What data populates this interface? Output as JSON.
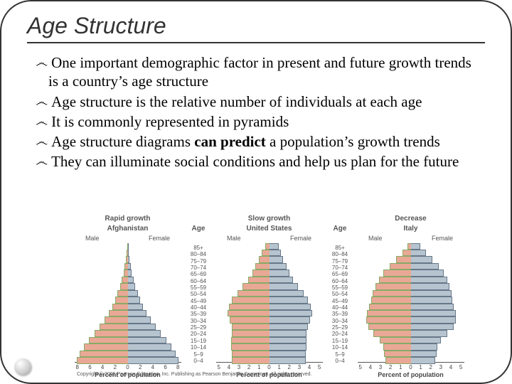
{
  "title": "Age Structure",
  "bullets": [
    {
      "pre": "One important demographic factor in present and future growth trends is a country’s age structure"
    },
    {
      "pre": "Age structure is the relative number of individuals at each age"
    },
    {
      "pre": "It is commonly represented in pyramids"
    },
    {
      "pre": "Age structure diagrams ",
      "bold": "can predict",
      "post": " a population’s growth trends"
    },
    {
      "pre": "They can illuminate social conditions and help us plan for the future"
    }
  ],
  "figure": {
    "male_fill": "#e9a896",
    "female_fill": "#b6c4cf",
    "age_header": "Age",
    "age_labels": [
      "85+",
      "80–84",
      "75–79",
      "70–74",
      "65–69",
      "60–64",
      "55–59",
      "50–54",
      "45–49",
      "40–44",
      "35–39",
      "30–34",
      "25–29",
      "20–24",
      "15–19",
      "10–14",
      "5–9",
      "0–4"
    ],
    "xlabel": "Percent of population",
    "xticks_wide": [
      "8",
      "6",
      "4",
      "2",
      "0",
      "2",
      "4",
      "6",
      "8"
    ],
    "xticks_narrow": [
      "5",
      "4",
      "3",
      "2",
      "1",
      "0",
      "1",
      "2",
      "3",
      "4",
      "5"
    ],
    "copyright": "Copyright © 2005 Pearson Education, Inc. Publishing as Pearson Benjamin Cummings. All rights reserved.",
    "pyramids": [
      {
        "title": "Rapid growth",
        "country": "Afghanistan",
        "ml": "Male",
        "fl": "Female",
        "ticks": "wide",
        "male": [
          0.1,
          0.2,
          0.3,
          0.5,
          0.7,
          1.0,
          1.3,
          1.7,
          2.1,
          2.6,
          3.2,
          3.9,
          4.7,
          5.6,
          6.5,
          7.4,
          8.1,
          8.6
        ],
        "female": [
          0.1,
          0.2,
          0.3,
          0.5,
          0.7,
          1.0,
          1.3,
          1.7,
          2.1,
          2.6,
          3.2,
          3.9,
          4.7,
          5.6,
          6.5,
          7.4,
          8.1,
          8.6
        ]
      },
      {
        "title": "Slow growth",
        "country": "United States",
        "ml": "Male",
        "fl": "Female",
        "ticks": "narrow",
        "male": [
          0.4,
          0.7,
          1.0,
          1.3,
          1.6,
          2.0,
          2.5,
          3.0,
          3.5,
          3.8,
          3.9,
          3.7,
          3.5,
          3.5,
          3.6,
          3.6,
          3.5,
          3.5
        ],
        "female": [
          0.9,
          1.1,
          1.3,
          1.6,
          1.9,
          2.2,
          2.7,
          3.2,
          3.6,
          3.9,
          4.0,
          3.8,
          3.6,
          3.5,
          3.5,
          3.5,
          3.4,
          3.4
        ]
      },
      {
        "title": "Decrease",
        "country": "Italy",
        "ml": "Male",
        "fl": "Female",
        "ticks": "narrow",
        "male": [
          0.3,
          0.8,
          1.4,
          2.0,
          2.6,
          3.0,
          3.3,
          3.6,
          3.7,
          3.9,
          4.1,
          4.2,
          4.0,
          3.5,
          2.9,
          2.6,
          2.5,
          2.4
        ],
        "female": [
          0.9,
          1.4,
          2.0,
          2.6,
          3.1,
          3.4,
          3.6,
          3.8,
          3.9,
          4.0,
          4.2,
          4.2,
          4.0,
          3.4,
          2.8,
          2.5,
          2.4,
          2.3
        ]
      }
    ]
  }
}
